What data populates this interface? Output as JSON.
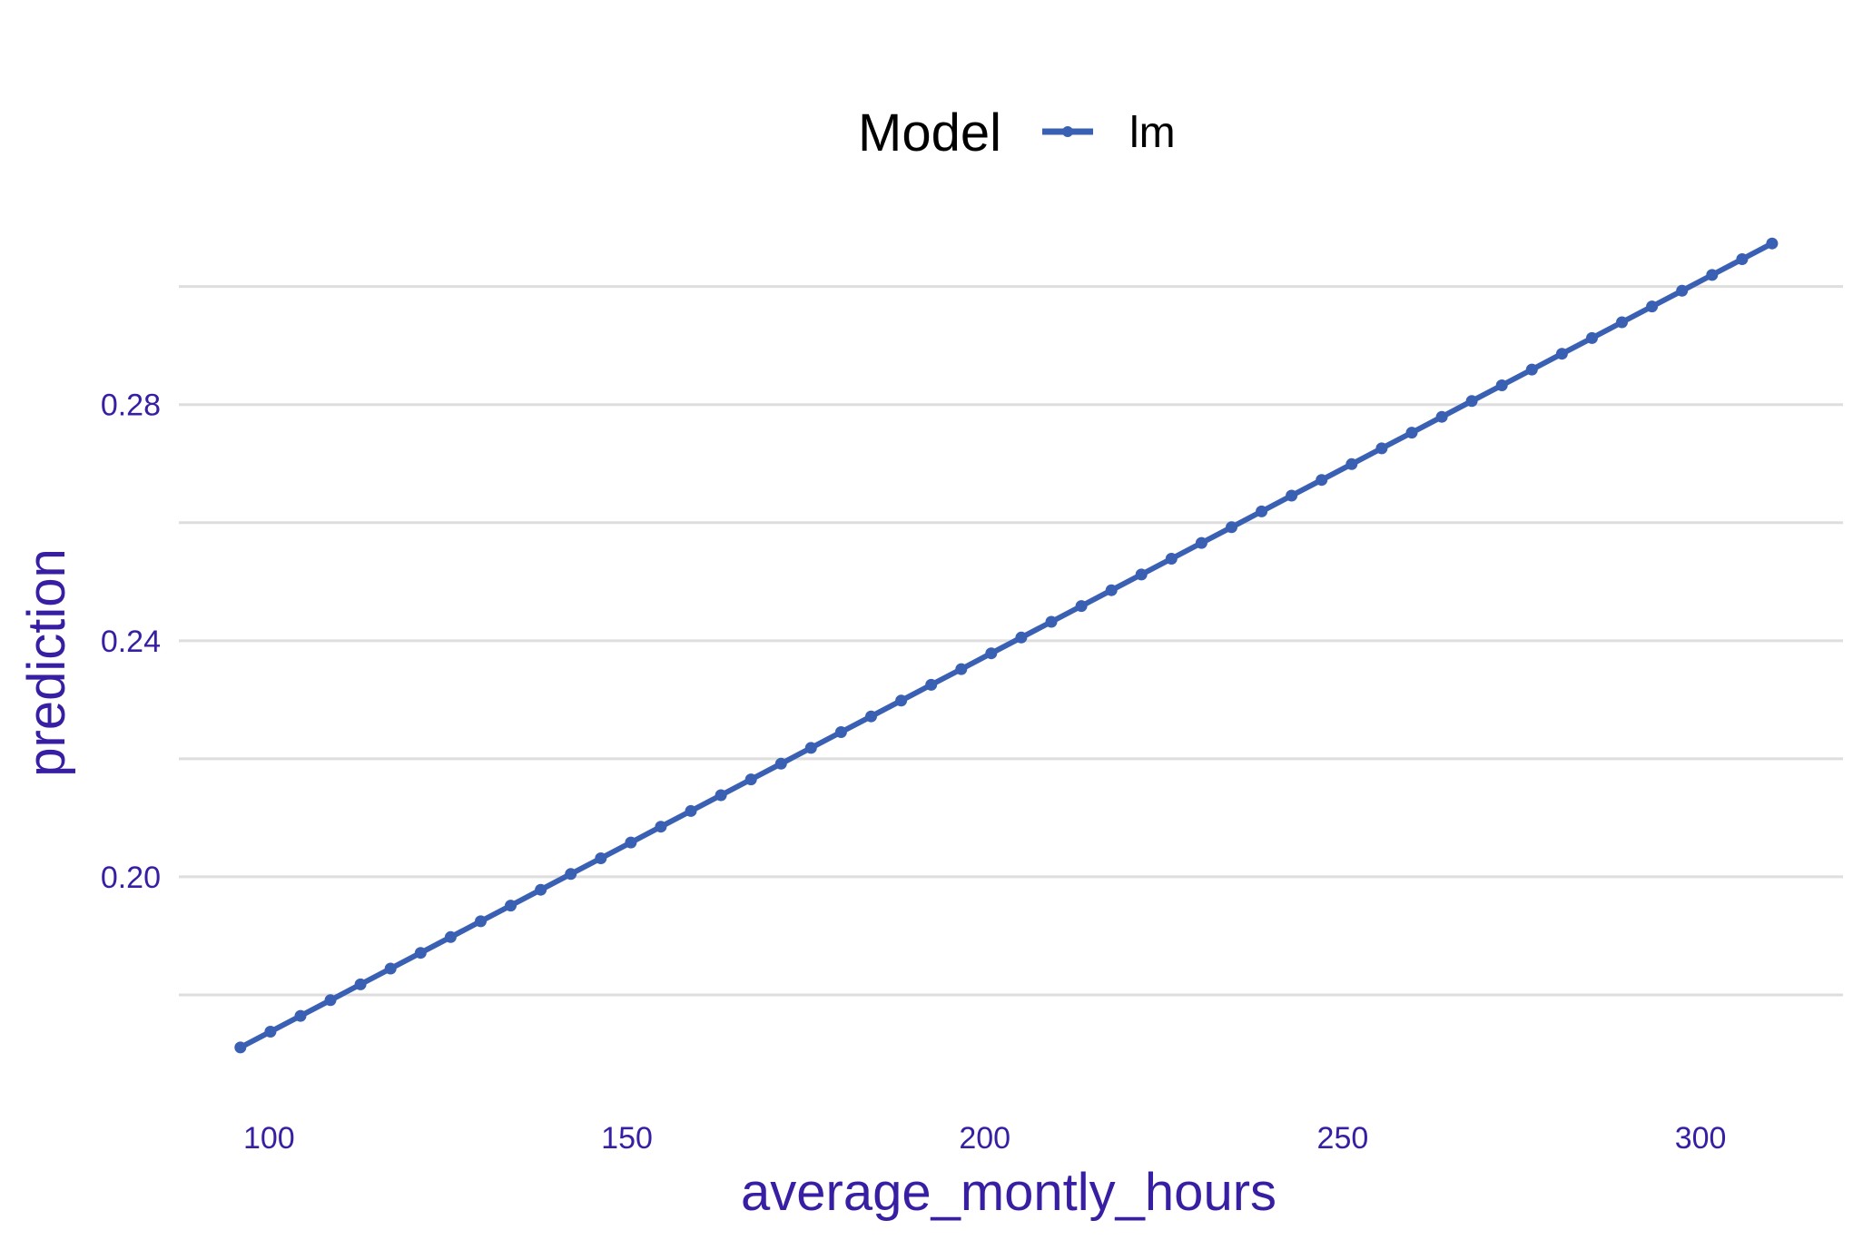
{
  "legend": {
    "title": "Model",
    "label": "lm"
  },
  "colors": {
    "series": "#3a60b3",
    "text": "#371ea3",
    "grid": "#dedede"
  },
  "chart_data": {
    "type": "line",
    "xlabel": "average_montly_hours",
    "ylabel": "prediction",
    "xlim": [
      87.4,
      319.9
    ],
    "ylim": [
      0.1617,
      0.3124
    ],
    "x_ticks": [
      100,
      150,
      200,
      250,
      300
    ],
    "x_tick_labels": [
      "100",
      "150",
      "200",
      "250",
      "300"
    ],
    "y_gridlines": [
      0.18,
      0.2,
      0.22,
      0.24,
      0.26,
      0.28,
      0.3
    ],
    "y_ticks": [
      0.2,
      0.24,
      0.28
    ],
    "y_tick_labels": [
      "0.20",
      "0.24",
      "0.28"
    ],
    "legend_position": "top",
    "grid": "horizontal",
    "series": [
      {
        "name": "lm",
        "x_start": 96,
        "x_end": 310,
        "points": 52,
        "y_start": 0.1711,
        "y_end": 0.3073
      }
    ]
  }
}
